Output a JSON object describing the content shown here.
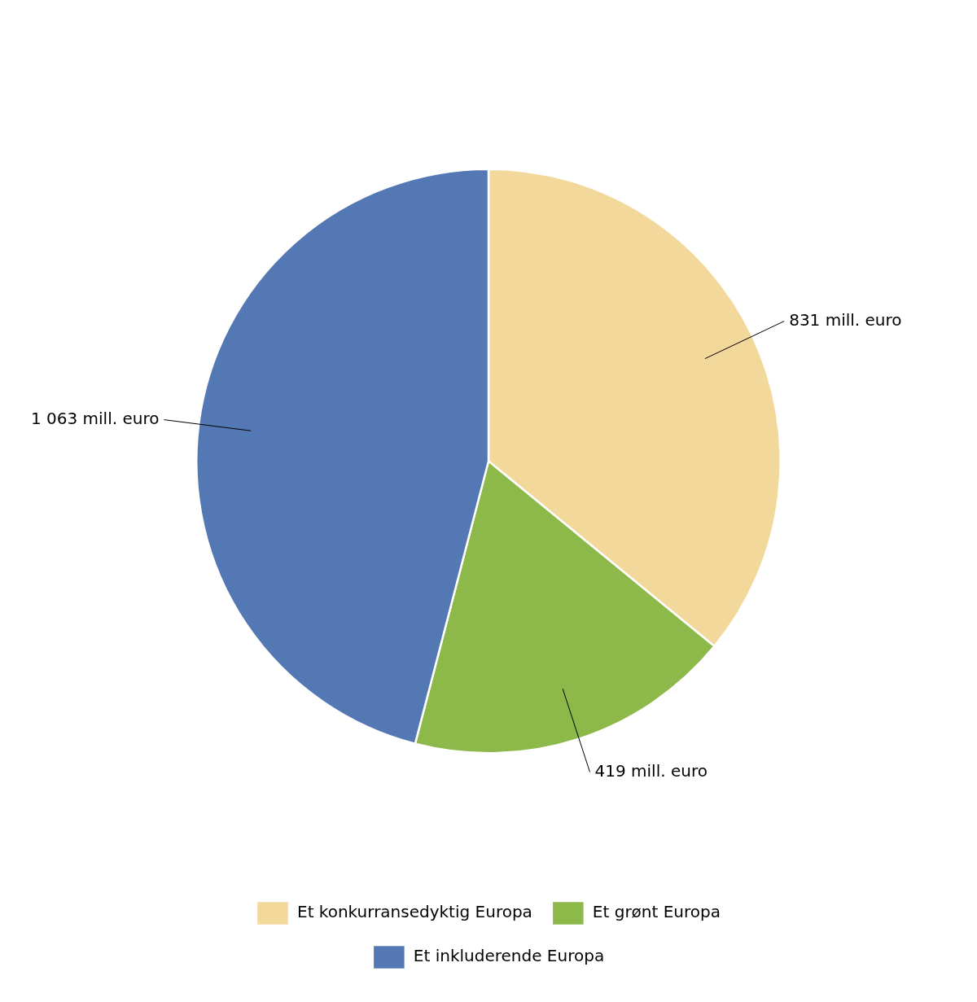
{
  "chart_data": {
    "type": "pie",
    "categories": [
      "Et konkurransedyktig Europa",
      "Et grønt Europa",
      "Et inkluderende Europa"
    ],
    "values": [
      831,
      419,
      1063
    ],
    "value_labels": [
      "831 mill. euro",
      "419 mill. euro",
      "1 063 mill. euro"
    ],
    "colors": [
      "#F2D89A",
      "#8DB84A",
      "#5478B4"
    ],
    "data_labels": true,
    "legend": "bottom"
  }
}
